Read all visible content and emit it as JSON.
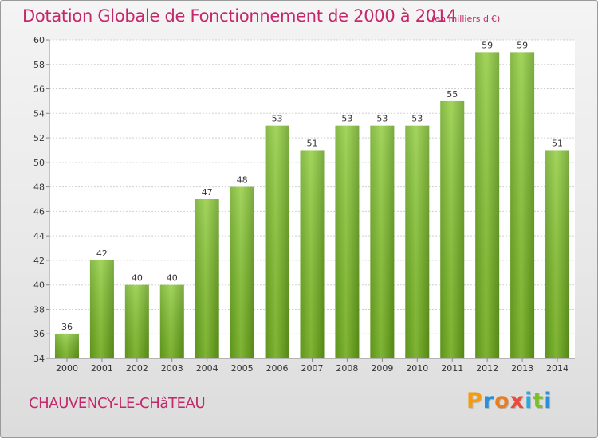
{
  "chart_data": {
    "type": "bar",
    "title": "Dotation Globale de Fonctionnement de 2000 à 2014",
    "subtitle": "(en milliers d'€)",
    "categories": [
      "2000",
      "2001",
      "2002",
      "2003",
      "2004",
      "2005",
      "2006",
      "2007",
      "2008",
      "2009",
      "2010",
      "2011",
      "2012",
      "2013",
      "2014"
    ],
    "values": [
      36,
      42,
      40,
      40,
      47,
      48,
      53,
      51,
      53,
      53,
      53,
      55,
      59,
      59,
      51
    ],
    "ylim": [
      34,
      60
    ],
    "yticks": [
      34,
      36,
      38,
      40,
      42,
      44,
      46,
      48,
      50,
      52,
      54,
      56,
      58,
      60
    ],
    "grid": true,
    "bar_color": "#7cbd2a"
  },
  "footer": {
    "commune": "CHAUVENCY-LE-CHâTEAU",
    "logo_letters": [
      "P",
      "r",
      "o",
      "x",
      "i",
      "t",
      "i"
    ],
    "logo_colors": [
      "#f39c12",
      "#2a8fd8",
      "#e67e22",
      "#e74c3c",
      "#27a9e1",
      "#7cbd2a",
      "#2a8fd8"
    ]
  }
}
